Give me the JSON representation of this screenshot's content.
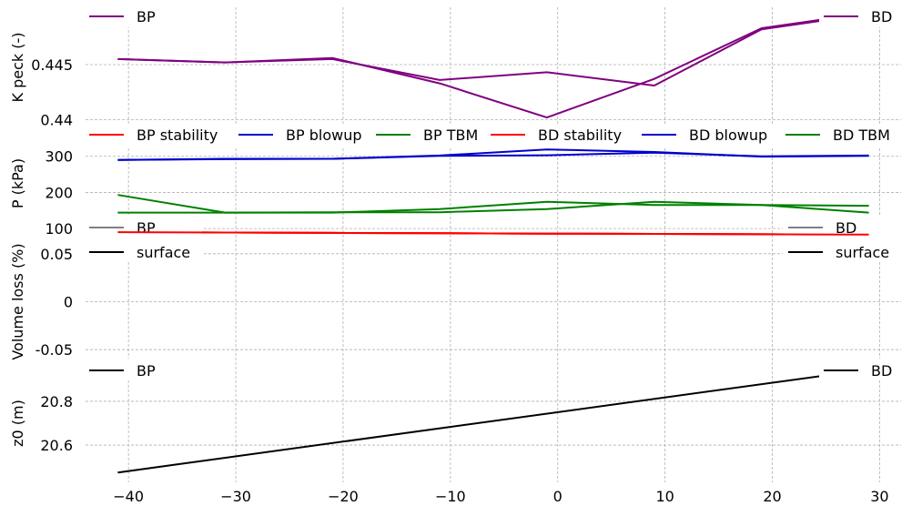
{
  "chart_data": [
    {
      "type": "line",
      "ylabel": "K peck (-)",
      "ylim": [
        0.4393,
        0.4502
      ],
      "yticks": [
        0.44,
        0.445
      ],
      "ytick_labels": [
        "0.44",
        "0.445"
      ],
      "grid": true,
      "legend": [
        {
          "name": "BP",
          "color": "#800080",
          "placement": "top-left"
        },
        {
          "name": "BD",
          "color": "#800080",
          "placement": "top-right"
        }
      ],
      "series": [
        {
          "name": "BP",
          "color": "#800080",
          "x": [
            -41,
            -31,
            -21,
            -11,
            -1,
            9,
            19,
            29
          ],
          "y": [
            0.4455,
            0.4452,
            0.4456,
            0.4433,
            0.4402,
            0.4437,
            0.4483,
            0.4497
          ]
        },
        {
          "name": "BD",
          "color": "#800080",
          "x": [
            -41,
            -31,
            -21,
            -11,
            -1,
            9,
            19,
            29
          ],
          "y": [
            0.4455,
            0.4452,
            0.4455,
            0.4436,
            0.4443,
            0.4431,
            0.4482,
            0.4496
          ]
        }
      ]
    },
    {
      "type": "line",
      "ylabel": "P (kPa)",
      "ylim": [
        70,
        380
      ],
      "yticks": [
        100,
        200,
        300
      ],
      "ytick_labels": [
        "100",
        "200",
        "300"
      ],
      "grid": true,
      "legend": [
        {
          "name": "BP stability",
          "color": "#ff0000"
        },
        {
          "name": "BP blowup",
          "color": "#0000cc"
        },
        {
          "name": "BP TBM",
          "color": "#008000"
        },
        {
          "name": "BD stability",
          "color": "#ff0000"
        },
        {
          "name": "BD blowup",
          "color": "#0000cc"
        },
        {
          "name": "BD TBM",
          "color": "#008000"
        }
      ],
      "legend_placement": "top",
      "series": [
        {
          "name": "BP stability",
          "color": "#ff0000",
          "x": [
            -41,
            -31,
            -21,
            -11,
            -1,
            9,
            19,
            29
          ],
          "y": [
            90,
            89,
            88,
            87,
            86,
            85,
            84,
            83
          ]
        },
        {
          "name": "BP blowup",
          "color": "#0000cc",
          "x": [
            -41,
            -31,
            -21,
            -11,
            -1,
            9,
            19,
            29
          ],
          "y": [
            290,
            292,
            293,
            302,
            319,
            312,
            299,
            301
          ]
        },
        {
          "name": "BP TBM",
          "color": "#008000",
          "x": [
            -41,
            -31,
            -21,
            -11,
            -1,
            9,
            19,
            29
          ],
          "y": [
            193,
            144,
            144,
            154,
            174,
            165,
            165,
            163
          ]
        },
        {
          "name": "BD stability",
          "color": "#ff0000",
          "x": [
            -41,
            -31,
            -21,
            -11,
            -1,
            9,
            19,
            29
          ],
          "y": [
            90,
            89,
            88,
            87,
            86,
            85,
            84,
            83
          ]
        },
        {
          "name": "BD blowup",
          "color": "#0000cc",
          "x": [
            -41,
            -31,
            -21,
            -11,
            -1,
            9,
            19,
            29
          ],
          "y": [
            290,
            293,
            293,
            301,
            303,
            310,
            300,
            302
          ]
        },
        {
          "name": "BD TBM",
          "color": "#008000",
          "x": [
            -41,
            -31,
            -21,
            -11,
            -1,
            9,
            19,
            29
          ],
          "y": [
            144,
            144,
            145,
            145,
            154,
            174,
            165,
            144
          ]
        }
      ]
    },
    {
      "type": "line",
      "ylabel": "Volume loss (%)",
      "ylim": [
        -0.065,
        0.065
      ],
      "yticks": [
        -0.05,
        0,
        0.05
      ],
      "ytick_labels": [
        "-0.05",
        "0",
        "0.05"
      ],
      "grid": true,
      "legend": [
        {
          "name": "BP",
          "color": "#808080",
          "placement": "top-left"
        },
        {
          "name": "surface",
          "color": "#000000",
          "placement": "top-left"
        },
        {
          "name": "BD",
          "color": "#808080",
          "placement": "top-right"
        },
        {
          "name": "surface",
          "color": "#000000",
          "placement": "top-right"
        }
      ],
      "series": []
    },
    {
      "type": "line",
      "ylabel": "z0 (m)",
      "ylim": [
        20.43,
        20.97
      ],
      "yticks": [
        20.6,
        20.8
      ],
      "ytick_labels": [
        "20.6",
        "20.8"
      ],
      "grid": true,
      "legend": [
        {
          "name": "BP",
          "color": "#000000",
          "placement": "top-left"
        },
        {
          "name": "BD",
          "color": "#000000",
          "placement": "top-right"
        }
      ],
      "series": [
        {
          "name": "z0",
          "color": "#000000",
          "x": [
            -41,
            29
          ],
          "y": [
            20.475,
            20.945
          ]
        }
      ]
    }
  ],
  "xaxis": {
    "xlim": [
      -44,
      32
    ],
    "ticks": [
      -40,
      -30,
      -20,
      -10,
      0,
      10,
      20,
      30
    ],
    "tick_labels": [
      "−40",
      "−30",
      "−20",
      "−10",
      "0",
      "10",
      "20",
      "30"
    ]
  }
}
